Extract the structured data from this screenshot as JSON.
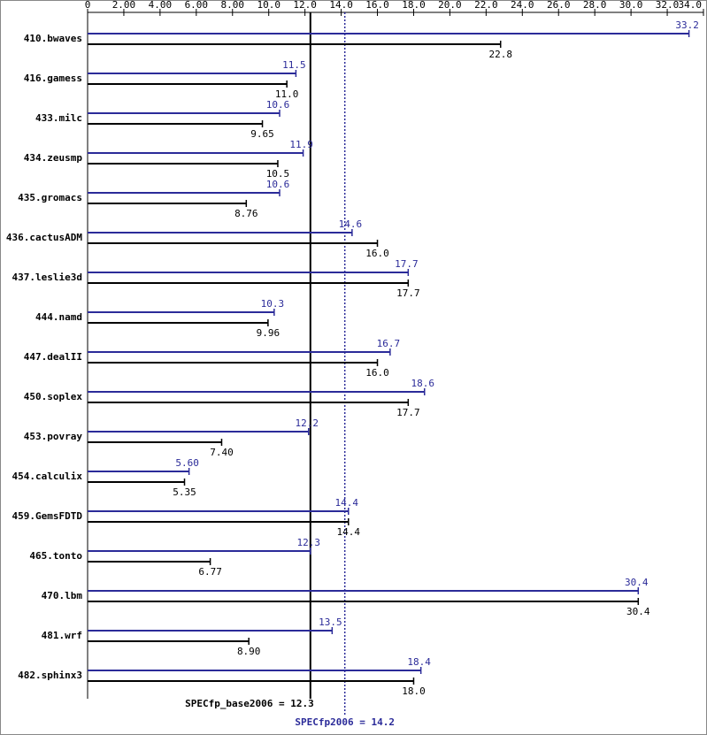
{
  "chart_data": {
    "type": "bar",
    "orientation": "horizontal",
    "categories": [
      "410.bwaves",
      "416.gamess",
      "433.milc",
      "434.zeusmp",
      "435.gromacs",
      "436.cactusADM",
      "437.leslie3d",
      "444.namd",
      "447.dealII",
      "450.soplex",
      "453.povray",
      "454.calculix",
      "459.GemsFDTD",
      "465.tonto",
      "470.lbm",
      "481.wrf",
      "482.sphinx3"
    ],
    "series": [
      {
        "color": "#2b2b99",
        "values": [
          33.2,
          11.5,
          10.6,
          11.9,
          10.6,
          14.6,
          17.7,
          10.3,
          16.7,
          18.6,
          12.2,
          5.6,
          14.4,
          12.3,
          30.4,
          13.5,
          18.4
        ],
        "value_labels": [
          "33.2",
          "11.5",
          "10.6",
          "11.9",
          "10.6",
          "14.6",
          "17.7",
          "10.3",
          "16.7",
          "18.6",
          "12.2",
          "5.60",
          "14.4",
          "12.3",
          "30.4",
          "13.5",
          "18.4"
        ]
      },
      {
        "color": "#000000",
        "values": [
          22.8,
          11.0,
          9.65,
          10.5,
          8.76,
          16.0,
          17.7,
          9.96,
          16.0,
          17.7,
          7.4,
          5.35,
          14.4,
          6.77,
          30.4,
          8.9,
          18.0
        ],
        "value_labels": [
          "22.8",
          "11.0",
          "9.65",
          "10.5",
          "8.76",
          "16.0",
          "17.7",
          "9.96",
          "16.0",
          "17.7",
          "7.40",
          "5.35",
          "14.4",
          "6.77",
          "30.4",
          "8.90",
          "18.0"
        ]
      }
    ],
    "xlim": [
      0,
      34
    ],
    "xticks": [
      0,
      {
        "value": 2,
        "label": "2.00"
      },
      {
        "value": 4,
        "label": "4.00"
      },
      {
        "value": 6,
        "label": "6.00"
      },
      {
        "value": 8,
        "label": "8.00"
      },
      {
        "value": 10,
        "label": "10.0"
      },
      {
        "value": 12,
        "label": "12.0"
      },
      {
        "value": 14,
        "label": "14.0"
      },
      {
        "value": 16,
        "label": "16.0"
      },
      {
        "value": 18,
        "label": "18.0"
      },
      {
        "value": 20,
        "label": "20.0"
      },
      {
        "value": 22,
        "label": "22.0"
      },
      {
        "value": 24,
        "label": "24.0"
      },
      {
        "value": 26,
        "label": "26.0"
      },
      {
        "value": 28,
        "label": "28.0"
      },
      {
        "value": 30,
        "label": "30.0"
      },
      {
        "value": 32,
        "label": "32.0"
      },
      {
        "value": 34,
        "label": "34.0"
      }
    ],
    "reference_lines": [
      {
        "label": "SPECfp_base2006 = 12.3",
        "value": 12.3,
        "color": "#000000",
        "style": "solid"
      },
      {
        "label": "SPECfp2006 = 14.2",
        "value": 14.2,
        "color": "#2b2b99",
        "style": "dotted"
      }
    ]
  }
}
